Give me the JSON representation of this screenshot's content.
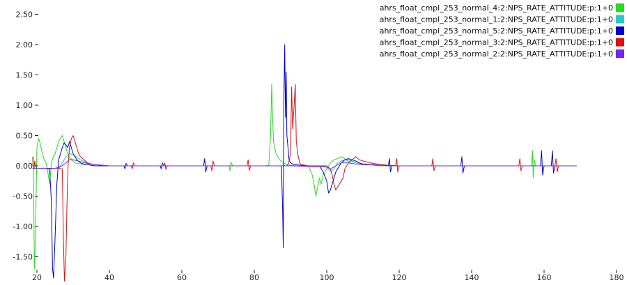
{
  "chart_data": {
    "type": "line",
    "title": "",
    "xlabel": "",
    "ylabel": "",
    "xlim": [
      18.5,
      180
    ],
    "ylim": [
      -1.85,
      2.6
    ],
    "grid": false,
    "legend_position": "top-right",
    "xticks": [
      20,
      40,
      60,
      80,
      100,
      120,
      140,
      160,
      180
    ],
    "yticks": [
      2.5,
      2.0,
      1.5,
      1.0,
      0.5,
      0.0,
      -0.5,
      -1.0,
      -1.5
    ],
    "xtick_labels": [
      "20",
      "40",
      "60",
      "80",
      "100",
      "120",
      "140",
      "160",
      "180"
    ],
    "ytick_labels": [
      "2.50",
      "2.00",
      "1.50",
      "1.00",
      "0.50",
      "0.00",
      "-0.50",
      "-1.00",
      "-1.50"
    ],
    "series": [
      {
        "name": "ahrs_float_cmpl_253_normal_4:2:NPS_RATE_ATTITUDE:p:1+0",
        "color": "#22dd22",
        "x": [
          18.8,
          19.0,
          19.3,
          19.6,
          20.0,
          20.5,
          21.0,
          21.5,
          22.0,
          22.5,
          23.0,
          23.5,
          24.0,
          24.5,
          25.0,
          25.5,
          26.0,
          26.5,
          27.0,
          27.5,
          28.0,
          28.5,
          29.0,
          29.5,
          30.0,
          30.5,
          31.0,
          32.0,
          33.0,
          34.0,
          35.0,
          36.0,
          38.0,
          40.0,
          45.0,
          50.0,
          55.0,
          60.0,
          65.0,
          70.0,
          73.0,
          73.3,
          73.6,
          74.0,
          80.0,
          83.0,
          84.0,
          84.5,
          84.8,
          85.0,
          85.3,
          86.0,
          87.0,
          88.0,
          89.0,
          90.0,
          92.0,
          95.0,
          96.0,
          96.5,
          97.0,
          97.5,
          98.0,
          98.5,
          99.0,
          99.5,
          100.0,
          101.0,
          102.0,
          103.0,
          104.0,
          105.0,
          106.0,
          107.0,
          108.0,
          110.0,
          112.0,
          114.0,
          116.0,
          118.0,
          120.0,
          122.0,
          124.0,
          126.0,
          128.0,
          132.0,
          136.0,
          140.0,
          145.0,
          150.0,
          154.0,
          156.5,
          156.8,
          157.0,
          157.3,
          157.6,
          160.0,
          165.0,
          169.0
        ],
        "y": [
          0.0,
          0.15,
          -1.7,
          -1.2,
          0.3,
          0.45,
          0.35,
          0.2,
          0.1,
          0.05,
          -0.1,
          -0.3,
          0.05,
          0.15,
          0.2,
          0.3,
          0.4,
          0.45,
          0.5,
          0.4,
          0.3,
          0.2,
          0.15,
          0.1,
          0.08,
          0.05,
          0.04,
          0.03,
          0.02,
          0.02,
          0.01,
          0.0,
          0.0,
          0.0,
          0.0,
          0.0,
          0.0,
          0.0,
          0.0,
          0.0,
          0.0,
          -0.08,
          0.06,
          0.0,
          0.0,
          0.0,
          0.01,
          0.5,
          1.35,
          0.9,
          0.4,
          0.2,
          0.1,
          0.05,
          0.02,
          0.01,
          0.0,
          0.0,
          -0.15,
          -0.3,
          -0.5,
          -0.35,
          -0.2,
          -0.3,
          -0.15,
          -0.1,
          -0.05,
          0.05,
          0.1,
          0.12,
          0.15,
          0.12,
          0.1,
          0.08,
          0.05,
          0.03,
          0.02,
          0.0,
          0.0,
          0.0,
          0.0,
          0.0,
          0.0,
          0.0,
          0.0,
          0.0,
          0.0,
          0.0,
          0.0,
          0.0,
          0.0,
          0.0,
          0.25,
          -0.2,
          0.1,
          0.0,
          0.0,
          0.0,
          0.0
        ]
      },
      {
        "name": "ahrs_float_cmpl_253_normal_1:2:NPS_RATE_ATTITUDE:p:1+0",
        "color": "#22cccc",
        "x": [
          18.8,
          22.0,
          24.0,
          25.0,
          25.5,
          26.0,
          26.5,
          27.0,
          28.0,
          29.0,
          30.0,
          31.0,
          32.0,
          34.0,
          36.0,
          40.0,
          60.0,
          80.0,
          85.0,
          87.5,
          88.0,
          88.5,
          89.0,
          90.0,
          95.0,
          98.0,
          100.0,
          101.0,
          102.0,
          103.0,
          104.0,
          105.0,
          106.0,
          108.0,
          110.0,
          115.0,
          120.0,
          140.0,
          169.0
        ],
        "y": [
          -0.04,
          -0.04,
          -0.05,
          -0.04,
          -0.03,
          -0.02,
          0.0,
          0.05,
          0.15,
          0.2,
          0.18,
          0.15,
          0.1,
          0.05,
          0.02,
          0.0,
          0.0,
          0.0,
          0.0,
          0.0,
          0.02,
          0.0,
          0.0,
          0.0,
          0.0,
          0.0,
          -0.02,
          -0.1,
          -0.05,
          0.05,
          0.08,
          0.1,
          0.08,
          0.05,
          0.03,
          0.01,
          0.0,
          0.0,
          0.0
        ]
      },
      {
        "name": "ahrs_float_cmpl_253_normal_5:2:NPS_RATE_ATTITUDE:p:1+0",
        "color": "#0000cc",
        "x": [
          18.8,
          20.0,
          22.0,
          23.5,
          24.0,
          24.3,
          24.6,
          25.0,
          25.5,
          26.0,
          26.5,
          27.0,
          27.5,
          28.0,
          28.5,
          29.0,
          29.5,
          30.0,
          30.5,
          31.0,
          32.0,
          33.0,
          34.0,
          35.0,
          36.0,
          38.0,
          40.0,
          44.0,
          44.3,
          44.6,
          45.0,
          50.0,
          54.0,
          54.3,
          54.6,
          55.0,
          60.0,
          65.0,
          66.0,
          66.3,
          66.6,
          67.0,
          70.0,
          75.0,
          80.0,
          85.0,
          87.0,
          87.5,
          87.8,
          88.0,
          88.2,
          88.4,
          88.6,
          88.8,
          89.0,
          89.3,
          89.6,
          90.0,
          91.0,
          93.0,
          95.0,
          97.0,
          98.0,
          99.0,
          100.0,
          100.5,
          101.0,
          101.5,
          102.0,
          102.5,
          103.0,
          103.5,
          104.0,
          105.0,
          106.0,
          107.0,
          108.0,
          109.0,
          110.0,
          112.0,
          115.0,
          117.0,
          117.3,
          117.6,
          118.0,
          120.0,
          125.0,
          130.0,
          135.0,
          137.0,
          137.3,
          137.6,
          138.0,
          140.0,
          145.0,
          150.0,
          155.0,
          159.0,
          159.3,
          159.6,
          160.0,
          162.0,
          162.3,
          162.6,
          163.0,
          165.0,
          169.0
        ],
        "y": [
          -0.04,
          -0.04,
          -0.04,
          -0.05,
          -0.6,
          -1.7,
          -1.85,
          -1.2,
          -0.3,
          0.1,
          0.2,
          0.3,
          0.38,
          0.35,
          0.3,
          0.4,
          0.3,
          0.2,
          0.15,
          0.1,
          0.05,
          0.03,
          0.02,
          0.01,
          0.0,
          0.0,
          0.0,
          0.0,
          -0.05,
          0.04,
          0.0,
          0.0,
          0.0,
          -0.05,
          0.05,
          0.0,
          0.0,
          0.0,
          0.0,
          0.12,
          -0.1,
          0.0,
          0.0,
          0.0,
          0.0,
          0.0,
          0.0,
          0.0,
          -0.7,
          -1.35,
          1.2,
          2.0,
          0.8,
          1.55,
          0.5,
          0.3,
          0.1,
          0.05,
          0.02,
          0.01,
          0.0,
          0.0,
          0.0,
          -0.1,
          -0.25,
          -0.45,
          -0.4,
          -0.3,
          -0.2,
          -0.1,
          -0.05,
          0.0,
          0.05,
          0.1,
          0.12,
          0.1,
          0.08,
          0.05,
          0.03,
          0.02,
          0.01,
          0.0,
          0.12,
          -0.1,
          0.0,
          0.0,
          0.0,
          0.0,
          0.0,
          0.0,
          0.15,
          -0.12,
          0.0,
          0.0,
          0.0,
          0.0,
          0.0,
          0.0,
          0.25,
          -0.15,
          0.0,
          0.0,
          0.25,
          -0.12,
          0.0,
          0.0,
          0.0
        ]
      },
      {
        "name": "ahrs_float_cmpl_253_normal_3:2:NPS_RATE_ATTITUDE:p:1+0",
        "color": "#dd1111",
        "x": [
          18.8,
          19.0,
          19.2,
          19.4,
          19.6,
          20.0,
          22.0,
          24.0,
          26.0,
          27.0,
          27.3,
          27.6,
          28.0,
          28.3,
          28.6,
          29.0,
          29.5,
          30.0,
          30.5,
          31.0,
          31.5,
          32.0,
          33.0,
          34.0,
          35.0,
          36.0,
          38.0,
          40.0,
          46.0,
          46.3,
          46.6,
          47.0,
          55.0,
          55.3,
          55.6,
          56.0,
          60.0,
          68.0,
          68.3,
          68.6,
          69.0,
          75.0,
          78.0,
          78.3,
          78.6,
          79.0,
          85.0,
          89.0,
          89.5,
          90.0,
          90.3,
          90.6,
          91.0,
          91.3,
          91.6,
          92.0,
          92.5,
          93.0,
          95.0,
          98.0,
          100.0,
          101.0,
          101.5,
          102.0,
          102.5,
          103.0,
          103.5,
          104.0,
          104.5,
          105.0,
          106.0,
          107.0,
          108.0,
          109.0,
          110.0,
          112.0,
          115.0,
          119.0,
          119.3,
          119.6,
          120.0,
          125.0,
          129.0,
          129.3,
          129.6,
          130.0,
          140.0,
          150.0,
          153.0,
          153.3,
          153.6,
          154.0,
          160.0,
          163.0,
          163.3,
          163.6,
          164.0,
          166.0,
          169.0
        ],
        "y": [
          0.15,
          0.0,
          -0.05,
          0.08,
          0.0,
          -0.04,
          -0.04,
          -0.04,
          -0.04,
          -0.05,
          -1.2,
          -1.9,
          -1.5,
          -0.6,
          0.0,
          0.3,
          0.45,
          0.5,
          0.4,
          0.3,
          0.2,
          0.15,
          0.1,
          0.05,
          0.03,
          0.02,
          0.01,
          0.0,
          0.0,
          -0.05,
          0.05,
          0.0,
          0.0,
          0.05,
          -0.06,
          0.0,
          0.0,
          0.0,
          -0.08,
          0.08,
          0.0,
          0.0,
          0.0,
          0.1,
          -0.08,
          0.0,
          0.0,
          0.0,
          0.05,
          0.2,
          1.3,
          0.6,
          1.0,
          1.35,
          0.4,
          0.2,
          0.05,
          0.02,
          0.0,
          0.0,
          0.0,
          -0.05,
          -0.15,
          -0.3,
          -0.4,
          -0.35,
          -0.3,
          -0.25,
          -0.2,
          -0.05,
          0.05,
          0.1,
          0.15,
          0.1,
          0.08,
          0.05,
          0.02,
          0.0,
          0.12,
          -0.1,
          0.0,
          0.0,
          0.0,
          0.12,
          -0.08,
          0.0,
          0.0,
          0.0,
          0.0,
          0.12,
          -0.08,
          0.0,
          0.0,
          0.0,
          0.12,
          -0.1,
          0.0,
          0.0,
          0.0
        ]
      },
      {
        "name": "ahrs_float_cmpl_253_normal_2:2:NPS_RATE_ATTITUDE:p:1+0",
        "color": "#7722ee",
        "x": [
          18.8,
          24.0,
          25.0,
          26.0,
          27.0,
          28.0,
          29.0,
          30.0,
          32.0,
          34.0,
          36.0,
          40.0,
          60.0,
          80.0,
          90.0,
          100.0,
          101.0,
          102.0,
          103.0,
          104.0,
          105.0,
          106.0,
          108.0,
          110.0,
          115.0,
          120.0,
          140.0,
          169.0
        ],
        "y": [
          -0.04,
          -0.04,
          -0.04,
          -0.03,
          0.0,
          0.05,
          0.1,
          0.1,
          0.07,
          0.04,
          0.02,
          0.0,
          0.0,
          0.0,
          0.0,
          -0.02,
          -0.05,
          -0.02,
          0.02,
          0.05,
          0.06,
          0.05,
          0.03,
          0.02,
          0.01,
          0.0,
          0.0,
          0.0
        ]
      }
    ]
  }
}
